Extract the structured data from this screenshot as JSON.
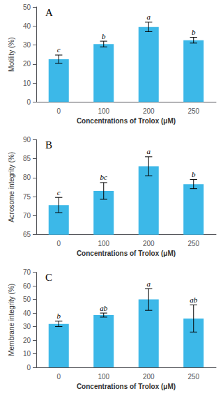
{
  "chart_data": [
    {
      "type": "bar",
      "title": "A",
      "xlabel": "Concentrations of Trolox (μM)",
      "ylabel": "Motility (%)",
      "categories": [
        "0",
        "100",
        "200",
        "250"
      ],
      "values": [
        22.5,
        30.5,
        39.5,
        32.5
      ],
      "errors": [
        2.2,
        1.5,
        2.5,
        1.5
      ],
      "sig_labels": [
        "c",
        "b",
        "a",
        "b"
      ],
      "color": "#3CB8E8",
      "ylim": [
        0,
        50
      ],
      "yticks": [
        0,
        10,
        20,
        30,
        40,
        50
      ]
    },
    {
      "type": "bar",
      "title": "B",
      "xlabel": "Concentrations of Trolox (μM)",
      "ylabel": "Acrosome integrity (%)",
      "categories": [
        "0",
        "100",
        "200",
        "250"
      ],
      "values": [
        72.8,
        76.5,
        83.0,
        78.3
      ],
      "errors": [
        2.0,
        2.2,
        2.5,
        1.2
      ],
      "sig_labels": [
        "c",
        "bc",
        "a",
        "b"
      ],
      "color": "#3CB8E8",
      "ylim": [
        65,
        90
      ],
      "yticks": [
        65,
        70,
        75,
        80,
        85,
        90
      ]
    },
    {
      "type": "bar",
      "title": "C",
      "xlabel": "Concentrations of Trolox (μM)",
      "ylabel": "Membrane integrity (%)",
      "categories": [
        "0",
        "100",
        "200",
        "250"
      ],
      "values": [
        32.0,
        38.5,
        50.0,
        36.0
      ],
      "errors": [
        2.0,
        1.5,
        8.0,
        10.0
      ],
      "sig_labels": [
        "b",
        "ab",
        "a",
        "ab"
      ],
      "color": "#3CB8E8",
      "ylim": [
        0,
        70
      ],
      "yticks": [
        0,
        10,
        20,
        30,
        40,
        50,
        60,
        70
      ]
    }
  ]
}
